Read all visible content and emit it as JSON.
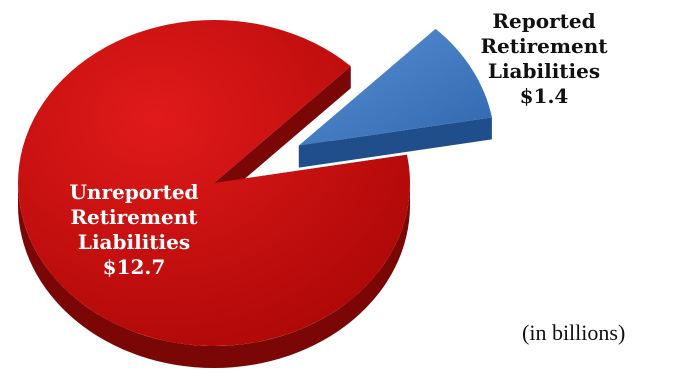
{
  "chart_data": {
    "type": "pie",
    "categories": [
      "Unreported Retirement Liabilities",
      "Reported Retirement Liabilities"
    ],
    "values": [
      12.7,
      1.4
    ],
    "value_labels": [
      "$12.7",
      "$1.4"
    ],
    "label_lines": [
      [
        "Unreported",
        "Retirement",
        "Liabilities",
        "$12.7"
      ],
      [
        "Reported",
        "Retirement",
        "Liabilities",
        "$1.4"
      ]
    ],
    "units_note": "(in billions)",
    "colors": {
      "unreported_top": "#c40d0d",
      "unreported_side": "#7a0606",
      "reported_top": "#3f7cc5",
      "reported_side": "#1f4e8a"
    },
    "exploded_slice": "Reported Retirement Liabilities"
  }
}
